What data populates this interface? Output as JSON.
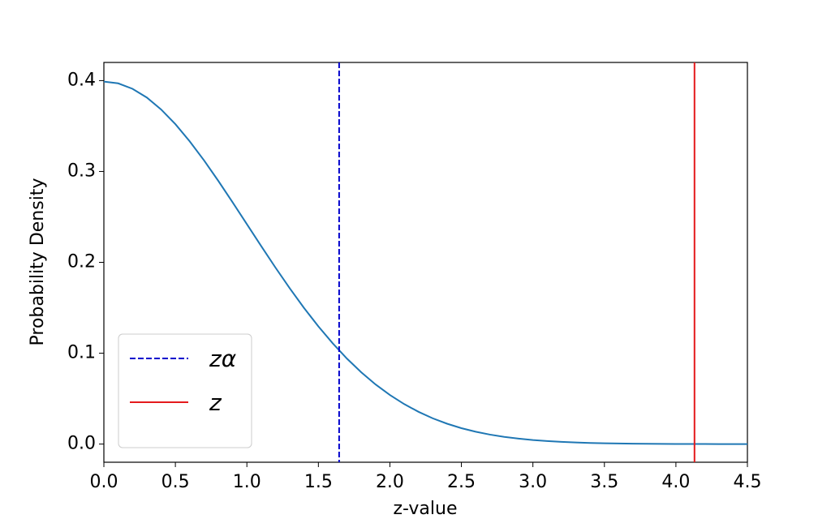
{
  "chart_data": {
    "type": "line",
    "x_label": "z-value",
    "y_label": "Probability Density",
    "x": [
      0,
      0.1,
      0.2,
      0.3,
      0.4,
      0.5,
      0.6,
      0.7,
      0.8,
      0.9,
      1.0,
      1.1,
      1.2,
      1.3,
      1.4,
      1.5,
      1.6,
      1.7,
      1.8,
      1.9,
      2.0,
      2.1,
      2.2,
      2.3,
      2.4,
      2.5,
      2.6,
      2.7,
      2.8,
      2.9,
      3.0,
      3.1,
      3.2,
      3.3,
      3.4,
      3.5,
      3.6,
      3.7,
      3.8,
      3.9,
      4.0,
      4.1,
      4.2,
      4.3,
      4.4,
      4.5
    ],
    "series": [
      {
        "color": "#1f77b4",
        "values": [
          0.3989,
          0.397,
          0.391,
          0.3814,
          0.3683,
          0.3521,
          0.3332,
          0.3123,
          0.2897,
          0.2661,
          0.242,
          0.2179,
          0.1942,
          0.1714,
          0.1497,
          0.1295,
          0.1109,
          0.094,
          0.079,
          0.0656,
          0.054,
          0.044,
          0.0355,
          0.0283,
          0.0224,
          0.0175,
          0.0136,
          0.0104,
          0.0079,
          0.006,
          0.0044,
          0.0033,
          0.0024,
          0.0017,
          0.0012,
          0.0009,
          0.0006,
          0.0004,
          0.0003,
          0.0002,
          0.0001,
          0.0001,
          0.0001,
          0,
          0,
          0
        ]
      }
    ],
    "vlines": [
      {
        "name": "zα",
        "x": 1.645,
        "color": "#0000cc",
        "dashed": true
      },
      {
        "name": "z",
        "x": 4.13,
        "color": "#e41a1c",
        "dashed": false
      }
    ],
    "xlim": [
      0,
      4.5
    ],
    "ylim": [
      -0.02,
      0.42
    ],
    "xticks": [
      {
        "value": 0,
        "label": "0.0"
      },
      0.5,
      {
        "value": 1,
        "label": "1.0"
      },
      1.5,
      {
        "value": 2,
        "label": "2.0"
      },
      2.5,
      {
        "value": 3,
        "label": "3.0"
      },
      3.5,
      {
        "value": 4,
        "label": "4.0"
      },
      4.5
    ],
    "yticks": [
      {
        "value": 0,
        "label": "0.0"
      },
      0.1,
      0.2,
      0.3,
      0.4
    ],
    "legend": "lower left"
  }
}
